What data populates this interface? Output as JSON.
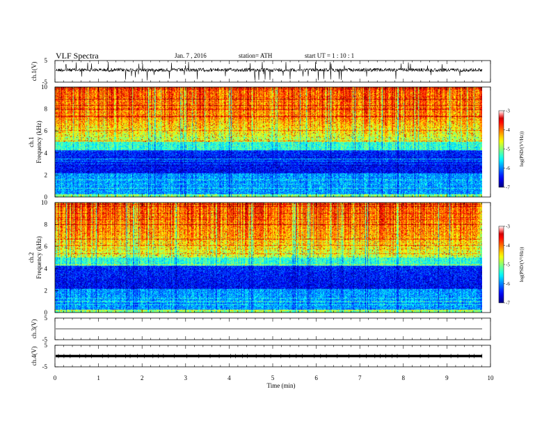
{
  "header": {
    "title": "VLF  Spectra",
    "date": "Jan. 7  , 2016",
    "station": "station= ATH",
    "start": "start  UT  =   1  : 10 : 1"
  },
  "chart_data": [
    {
      "type": "line",
      "panel": "ch1-waveform",
      "ylabel": "ch.1(V)",
      "ylim": [
        -5,
        5
      ],
      "yticks": [
        "5",
        "-5"
      ],
      "xlim": [
        0,
        10
      ]
    },
    {
      "type": "heatmap",
      "panel": "ch1-spectrogram",
      "ylabel_line1": "ch.1",
      "ylabel_line2": "Frequency  (kHz)",
      "ylim": [
        0,
        10
      ],
      "yticks": [
        "0",
        "2",
        "4",
        "6",
        "8",
        "10"
      ],
      "xlim": [
        0,
        9.8
      ],
      "colorbar": {
        "label": "log(PSD/(V²/Hz))",
        "range": [
          -7,
          -3
        ],
        "ticks": [
          "-3",
          "-4",
          "-5",
          "-6",
          "-7"
        ]
      }
    },
    {
      "type": "heatmap",
      "panel": "ch2-spectrogram",
      "ylabel_line1": "ch.2",
      "ylabel_line2": "Frequency  (kHz)",
      "ylim": [
        0,
        10
      ],
      "yticks": [
        "0",
        "2",
        "4",
        "6",
        "8",
        "10"
      ],
      "xlim": [
        0,
        9.8
      ],
      "colorbar": {
        "label": "log(PSD/(V²/Hz))",
        "range": [
          -7,
          -3
        ],
        "ticks": [
          "-3",
          "-4",
          "-5",
          "-6",
          "-7"
        ]
      }
    },
    {
      "type": "line",
      "panel": "ch3-waveform",
      "ylabel": "ch.3(V)",
      "ylim": [
        -5,
        5
      ],
      "yticks": [
        "5",
        "-5"
      ],
      "xlim": [
        0,
        10
      ]
    },
    {
      "type": "line",
      "panel": "ch4-waveform",
      "ylabel": "ch.4(V)",
      "ylim": [
        -5,
        5
      ],
      "yticks": [
        "5",
        "-5"
      ],
      "xlim": [
        0,
        10
      ]
    }
  ],
  "x_axis": {
    "label": "Time  (min)",
    "range": [
      0,
      10
    ],
    "ticks": [
      "0",
      "1",
      "2",
      "3",
      "4",
      "5",
      "6",
      "7",
      "8",
      "9",
      "10"
    ]
  }
}
